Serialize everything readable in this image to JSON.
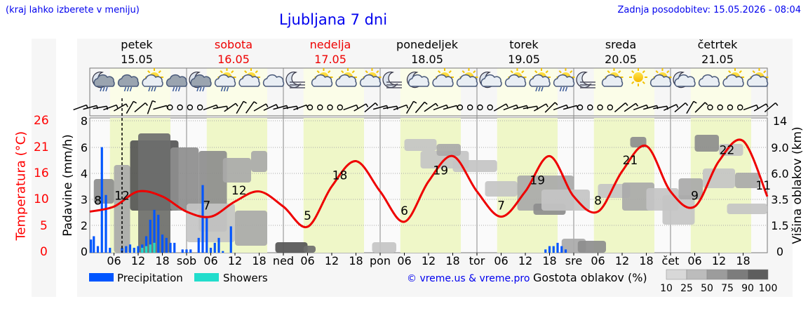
{
  "header": {
    "left_note": "(kraj lahko izberete v meniju)",
    "title": "Ljubljana 7 dni",
    "updated": "Zadnja posodobitev: 15.05.2026 - 08:04"
  },
  "days": [
    {
      "name": "petek",
      "date": "15.05",
      "weekend": false
    },
    {
      "name": "sobota",
      "date": "16.05",
      "weekend": true
    },
    {
      "name": "nedelja",
      "date": "17.05",
      "weekend": true
    },
    {
      "name": "ponedeljek",
      "date": "18.05",
      "weekend": false
    },
    {
      "name": "torek",
      "date": "19.05",
      "weekend": false
    },
    {
      "name": "sreda",
      "date": "20.05",
      "weekend": false
    },
    {
      "name": "četrtek",
      "date": "21.05",
      "weekend": false
    }
  ],
  "axes": {
    "temp_label": "Temperatura (°C)",
    "temp_ticks": [
      "26",
      "21",
      "16",
      "10",
      "5",
      "0"
    ],
    "precip_label": "Padavine (mm/h)",
    "precip_ticks": [
      "8",
      "6",
      "4",
      "3",
      "2",
      "0"
    ],
    "cloud_label": "Višina oblakov (km)",
    "cloud_ticks": [
      "14",
      "9.0",
      "6.0",
      "3.5",
      "1.5",
      "0"
    ],
    "x_ticks": [
      "06",
      "12",
      "18",
      "sob",
      "06",
      "12",
      "18",
      "ned",
      "06",
      "12",
      "18",
      "pon",
      "06",
      "12",
      "18",
      "tor",
      "06",
      "12",
      "18",
      "sre",
      "06",
      "12",
      "18",
      "čet",
      "06",
      "12",
      "18"
    ]
  },
  "legend": {
    "precipitation": "Precipitation",
    "showers": "Showers",
    "credit": "© vreme.us & vreme.pro",
    "density_title": "Gostota oblakov (%)",
    "density_steps": [
      "10",
      "25",
      "50",
      "75",
      "90",
      "100"
    ]
  },
  "colors": {
    "temperature": "#ee0000",
    "precipitation": "#0055ff",
    "showers": "#22ddcc",
    "daylight": "#eff7c8",
    "weekend": "#ee0000",
    "link": "#0000ee"
  },
  "weather_icons": [
    "moon-cloud-rain",
    "cloud-rain",
    "sun-cloud-rain",
    "cloud-rain",
    "moon-cloud-rain",
    "sun-cloud-rain",
    "sun-cloud",
    "cloud",
    "moon-fog",
    "sun-cloud",
    "sun-cloud",
    "sun-cloud",
    "moon-fog",
    "moon-cloud",
    "sun-cloud",
    "sun-cloud",
    "moon-cloud",
    "sun-cloud",
    "sun-cloud-rain",
    "sun-cloud-rain",
    "moon-fog",
    "sun-cloud",
    "sun",
    "sun-cloud",
    "moon-cloud",
    "cloud",
    "sun-cloud",
    "sun-cloud"
  ],
  "chart_data": {
    "type": "line",
    "title": "Ljubljana 7 dni",
    "ylabel": "Temperatura (°C)",
    "ylim": [
      0,
      26
    ],
    "x_hours": [
      0,
      6,
      12,
      18,
      24,
      30,
      36,
      42,
      48,
      54,
      60,
      66,
      72,
      78,
      84,
      90,
      96,
      102,
      108,
      114,
      120,
      126,
      132,
      138,
      144,
      150,
      156,
      162,
      168
    ],
    "series": [
      {
        "name": "Temperatura (°C)",
        "values": [
          8,
          9,
          12,
          11,
          8,
          7,
          10,
          12,
          9,
          5,
          13,
          18,
          12,
          6,
          14,
          19,
          12,
          7,
          12,
          19,
          11,
          8,
          16,
          21,
          12,
          9,
          18,
          22,
          11
        ]
      }
    ],
    "temp_labels": [
      {
        "hour": 2,
        "text": "8"
      },
      {
        "hour": 8,
        "text": "12"
      },
      {
        "hour": 29,
        "text": "7"
      },
      {
        "hour": 37,
        "text": "12"
      },
      {
        "hour": 54,
        "text": "5"
      },
      {
        "hour": 62,
        "text": "18"
      },
      {
        "hour": 78,
        "text": "6"
      },
      {
        "hour": 87,
        "text": "19"
      },
      {
        "hour": 102,
        "text": "7"
      },
      {
        "hour": 111,
        "text": "19"
      },
      {
        "hour": 126,
        "text": "8"
      },
      {
        "hour": 134,
        "text": "21"
      },
      {
        "hour": 150,
        "text": "9"
      },
      {
        "hour": 158,
        "text": "22"
      },
      {
        "hour": 167,
        "text": "11"
      }
    ],
    "precipitation_bars": [
      {
        "hour": 0.3,
        "value": 0.8
      },
      {
        "hour": 1,
        "value": 1.0
      },
      {
        "hour": 2,
        "value": 0.4
      },
      {
        "hour": 3,
        "value": 6.4
      },
      {
        "hour": 4,
        "value": 3.5
      },
      {
        "hour": 5,
        "value": 0.3
      },
      {
        "hour": 8,
        "value": 0.3
      },
      {
        "hour": 9,
        "value": 0.4
      },
      {
        "hour": 10,
        "value": 0.5
      },
      {
        "hour": 11,
        "value": 0.3
      },
      {
        "hour": 12,
        "value": 0.4
      },
      {
        "hour": 13,
        "value": 0.5
      },
      {
        "hour": 14,
        "value": 1.0
      },
      {
        "hour": 15,
        "value": 2.0
      },
      {
        "hour": 16,
        "value": 2.6
      },
      {
        "hour": 17,
        "value": 2.3
      },
      {
        "hour": 18,
        "value": 1.1
      },
      {
        "hour": 19,
        "value": 0.9
      },
      {
        "hour": 20,
        "value": 0.6
      },
      {
        "hour": 21,
        "value": 0.6
      },
      {
        "hour": 23,
        "value": 0.2
      },
      {
        "hour": 24,
        "value": 0.2
      },
      {
        "hour": 25,
        "value": 0.2
      },
      {
        "hour": 27,
        "value": 0.9
      },
      {
        "hour": 28,
        "value": 4.1
      },
      {
        "hour": 29,
        "value": 2.1
      },
      {
        "hour": 30,
        "value": 0.3
      },
      {
        "hour": 31,
        "value": 0.6
      },
      {
        "hour": 32,
        "value": 0.9
      },
      {
        "hour": 33,
        "value": 0.1
      },
      {
        "hour": 35,
        "value": 1.6
      },
      {
        "hour": 113,
        "value": 0.2
      },
      {
        "hour": 114,
        "value": 0.4
      },
      {
        "hour": 115,
        "value": 0.4
      },
      {
        "hour": 116,
        "value": 0.6
      },
      {
        "hour": 117,
        "value": 0.4
      },
      {
        "hour": 118,
        "value": 0.2
      }
    ],
    "shower_bars": [
      {
        "hour": 13,
        "value": 0.3
      },
      {
        "hour": 14,
        "value": 0.4
      },
      {
        "hour": 15,
        "value": 0.5
      },
      {
        "hour": 16,
        "value": 0.6
      }
    ],
    "current_time_hour": 8,
    "cloud_density_legend": "Gostota oblakov (%)"
  }
}
